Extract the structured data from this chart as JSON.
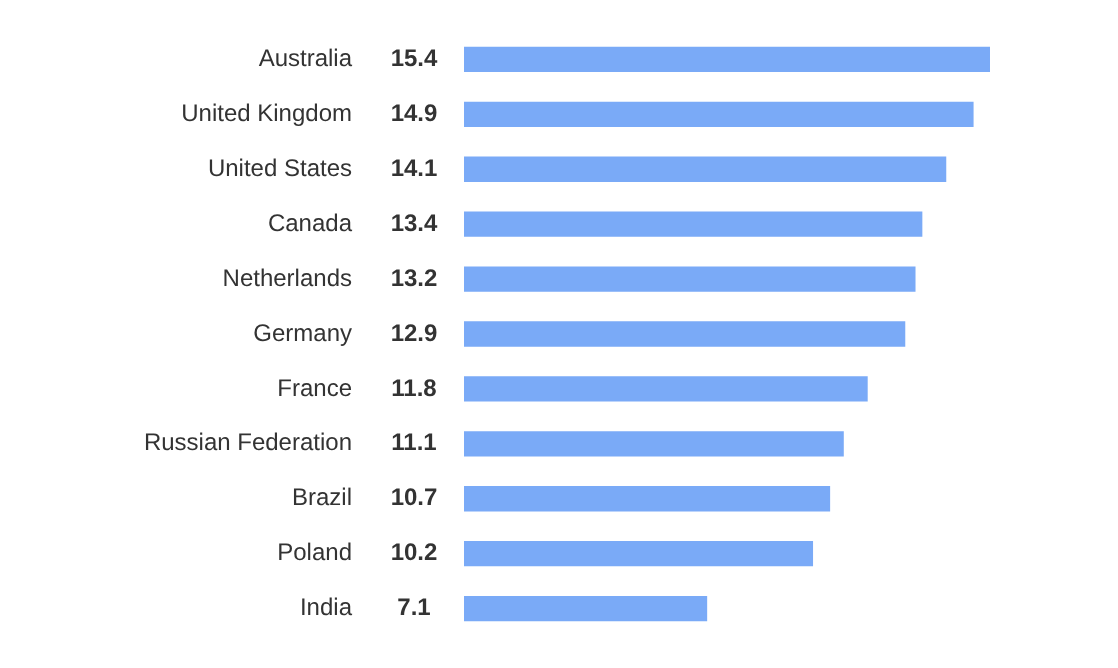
{
  "chart_data": {
    "type": "bar",
    "orientation": "horizontal",
    "categories": [
      "Australia",
      "United Kingdom",
      "United States",
      "Canada",
      "Netherlands",
      "Germany",
      "France",
      "Russian Federation",
      "Brazil",
      "Poland",
      "India"
    ],
    "values": [
      15.4,
      14.9,
      14.1,
      13.4,
      13.2,
      12.9,
      11.8,
      11.1,
      10.7,
      10.2,
      7.1
    ],
    "color": "#7aaaf7",
    "xlim": [
      0,
      15.4
    ],
    "data_labels": true
  }
}
